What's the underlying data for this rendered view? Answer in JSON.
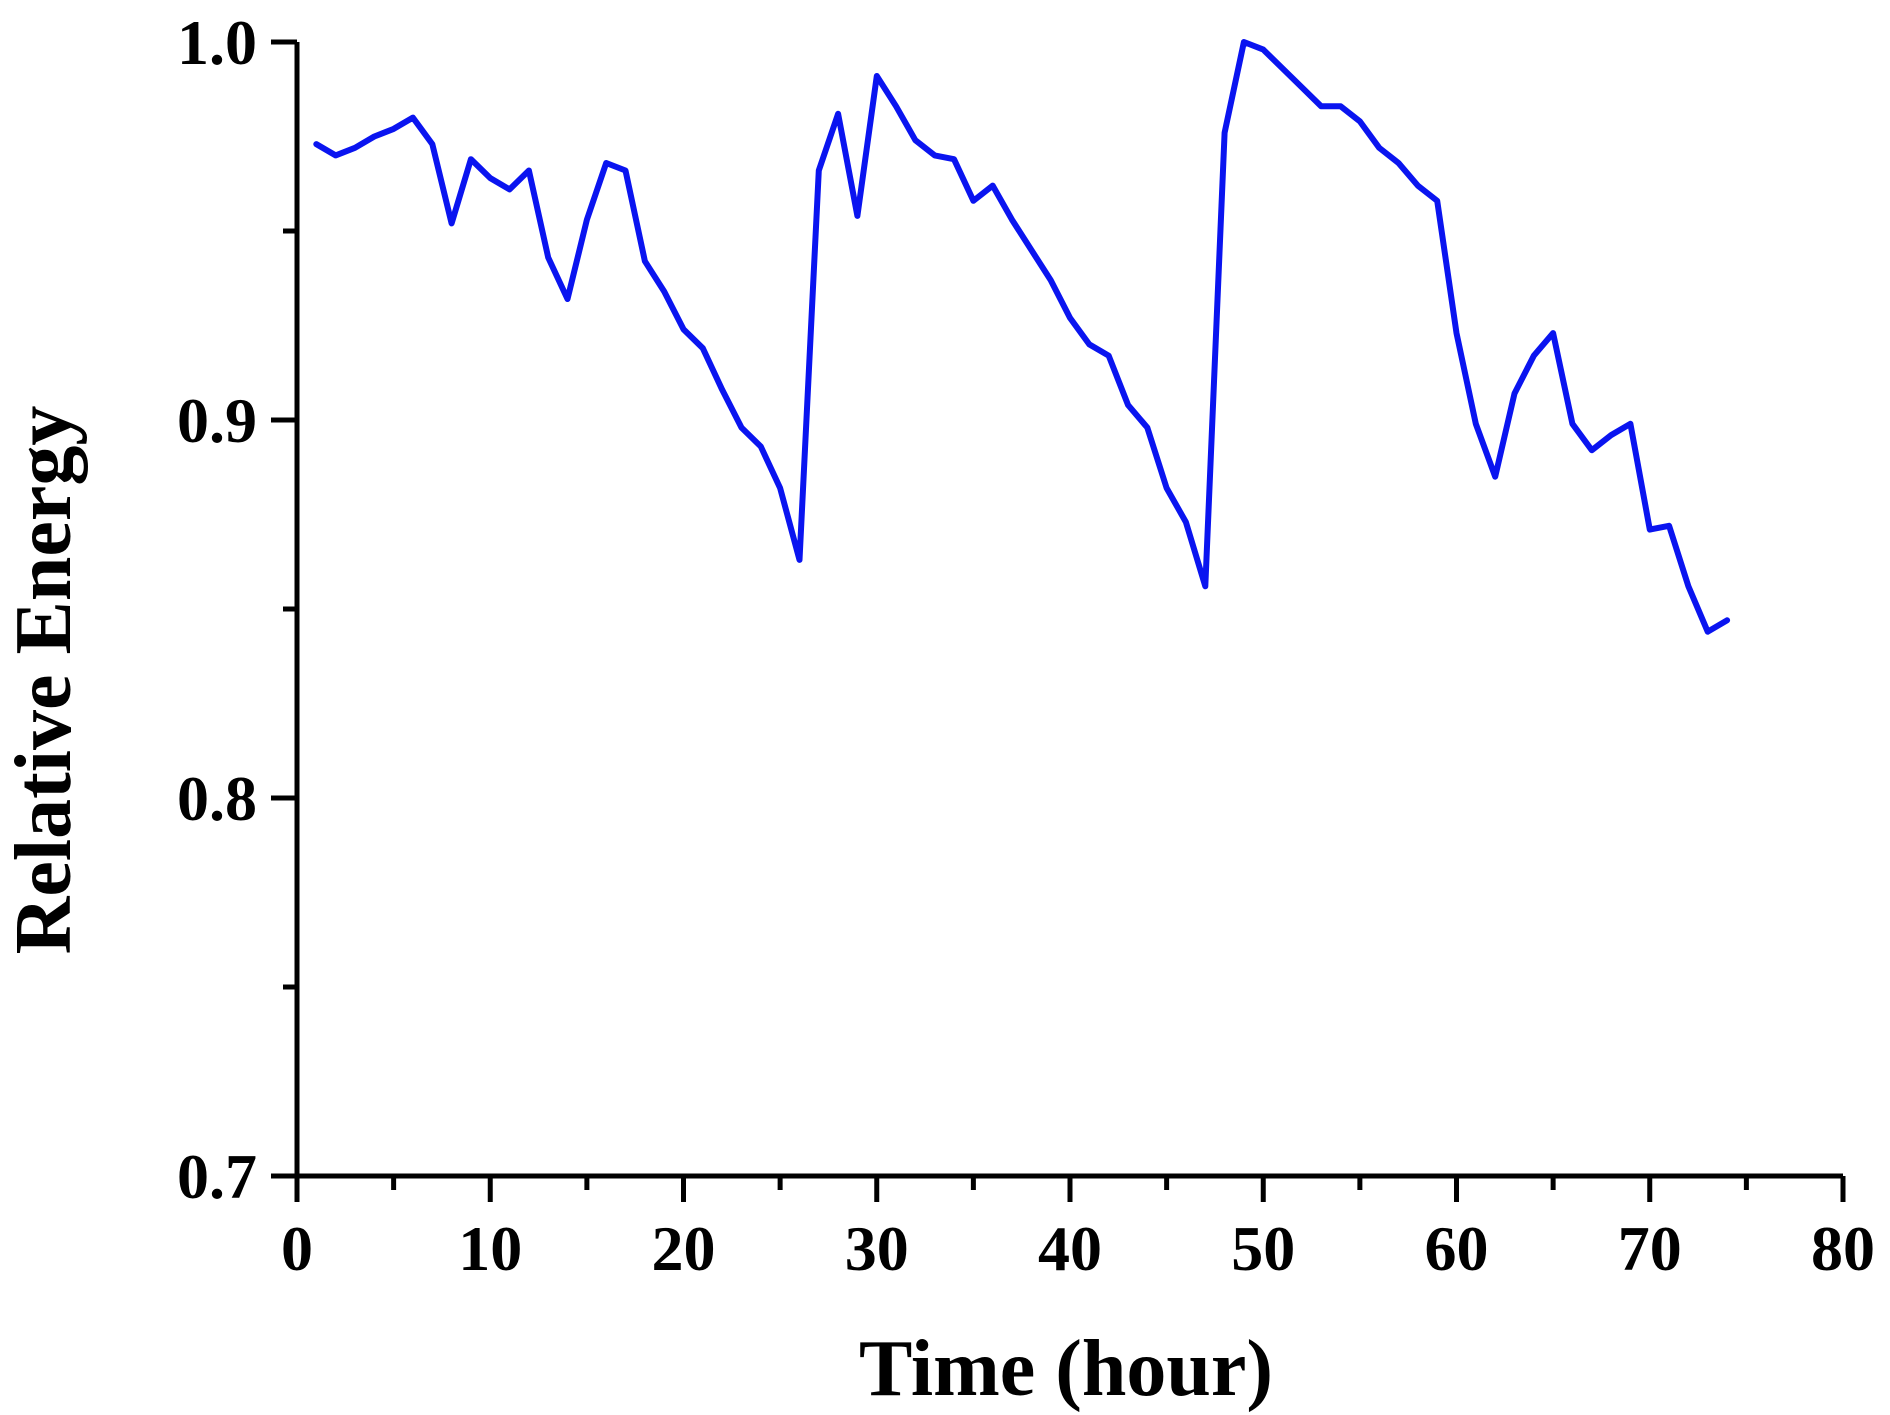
{
  "chart_data": {
    "type": "line",
    "title": "",
    "xlabel": "Time (hour)",
    "ylabel": "Relative Energy",
    "xlim": [
      0,
      80
    ],
    "ylim": [
      0.7,
      1.0
    ],
    "x_ticks": [
      0,
      10,
      20,
      30,
      40,
      50,
      60,
      70,
      80
    ],
    "x_tick_labels": [
      "0",
      "10",
      "20",
      "30",
      "40",
      "50",
      "60",
      "70",
      "80"
    ],
    "x_minor_ticks": [
      5,
      15,
      25,
      35,
      45,
      55,
      65,
      75
    ],
    "y_ticks": [
      0.7,
      0.8,
      0.9,
      1.0
    ],
    "y_tick_labels": [
      "0.7",
      "0.8",
      "0.9",
      "1.0"
    ],
    "y_minor_ticks": [
      0.75,
      0.85,
      0.95
    ],
    "grid": false,
    "legend": "none",
    "colors": {
      "series": "#0a14f0",
      "axis": "#000000"
    },
    "series": [
      {
        "x": [
          1,
          2,
          3,
          4,
          5,
          6,
          7,
          8,
          9,
          10,
          11,
          12,
          13,
          14,
          15,
          16,
          17,
          18,
          19,
          20,
          21,
          22,
          23,
          24,
          25,
          26,
          27,
          28,
          29,
          30,
          31,
          32,
          33,
          34,
          35,
          36,
          37,
          38,
          39,
          40,
          41,
          42,
          43,
          44,
          45,
          46,
          47,
          48,
          49,
          50,
          51,
          52,
          53,
          54,
          55,
          56,
          57,
          58,
          59,
          60,
          61,
          62,
          63,
          64,
          65,
          66,
          67,
          68,
          69,
          70,
          71,
          72,
          73,
          74
        ],
        "values": [
          0.973,
          0.97,
          0.972,
          0.975,
          0.977,
          0.98,
          0.973,
          0.952,
          0.969,
          0.964,
          0.961,
          0.966,
          0.943,
          0.932,
          0.953,
          0.968,
          0.966,
          0.942,
          0.934,
          0.924,
          0.919,
          0.908,
          0.898,
          0.893,
          0.882,
          0.863,
          0.966,
          0.981,
          0.954,
          0.991,
          0.983,
          0.974,
          0.97,
          0.969,
          0.958,
          0.962,
          0.953,
          0.945,
          0.937,
          0.927,
          0.92,
          0.917,
          0.904,
          0.898,
          0.882,
          0.873,
          0.856,
          0.976,
          1.0,
          0.998,
          0.993,
          0.988,
          0.983,
          0.983,
          0.979,
          0.972,
          0.968,
          0.962,
          0.958,
          0.923,
          0.899,
          0.885,
          0.907,
          0.917,
          0.923,
          0.899,
          0.892,
          0.896,
          0.899,
          0.871,
          0.872,
          0.856,
          0.844,
          0.847
        ]
      }
    ]
  }
}
